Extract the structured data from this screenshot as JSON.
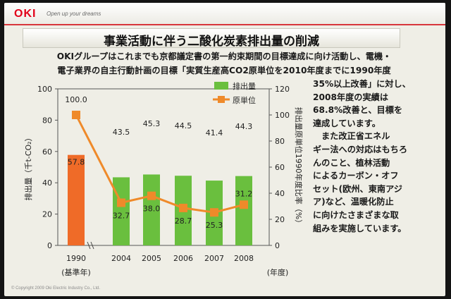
{
  "header": {
    "logo": "OKI",
    "tagline": "Open up your dreams",
    "title": "事業活動に伴う二酸化炭素排出量の削減"
  },
  "text": {
    "intro_line1": "OKIグループはこれまでも京都議定書の第一約束期間の目標達成に向け活動し、電機・",
    "intro_line2": "電子業界の自主行動計画の目標「実質生産高CO2原単位を2010年度までに1990年度",
    "side_lines": [
      "35%以上改善」に対し、",
      "2008年度の実績は",
      "68.8%改善と、目標を",
      "達成しています。",
      "また改正省エネル",
      "ギー法への対応はもちろ",
      "んのこと、植林活動",
      "によるカーボン・オフ",
      "セット(欧州、東南アジ",
      "ア)など、温暖化防止",
      "に向けたさまざまな取",
      "組みを実施しています。"
    ]
  },
  "colors": {
    "bar_default": "#6abf3e",
    "bar_base_year": "#ef6b28",
    "line": "#ef8a2a",
    "marker": "#ef8a2a",
    "base_year_text": "#e8402a",
    "highlight_year_text": "#3f9a2b",
    "accent_red": "#d8363c"
  },
  "chart_data": {
    "type": "bar",
    "categories": [
      "1990",
      "2004",
      "2005",
      "2006",
      "2007",
      "2008"
    ],
    "category_note": "(基準年)",
    "x_unit": "(年度)",
    "series": [
      {
        "name": "排出量",
        "kind": "bar",
        "axis": "left",
        "values": [
          57.8,
          43.5,
          45.3,
          44.5,
          41.4,
          44.3
        ]
      },
      {
        "name": "原単位",
        "kind": "line",
        "axis": "right",
        "values": [
          100.0,
          32.7,
          38.0,
          28.7,
          25.3,
          31.2
        ]
      }
    ],
    "left_axis": {
      "label": "排出量（千t-CO₂）",
      "ylim": [
        0,
        100
      ],
      "ticks": [
        0,
        20,
        40,
        60,
        80,
        100
      ]
    },
    "right_axis": {
      "label": "排出量原単位1990年度比率（%）",
      "ylim": [
        0,
        120
      ],
      "ticks": [
        0,
        20,
        40,
        60,
        80,
        100,
        120
      ]
    },
    "axis_break_after": "1990",
    "legend_position": "top-center"
  },
  "footer": {
    "copyright": "© Copyright 2009 Oki Electric Industry Co., Ltd."
  }
}
